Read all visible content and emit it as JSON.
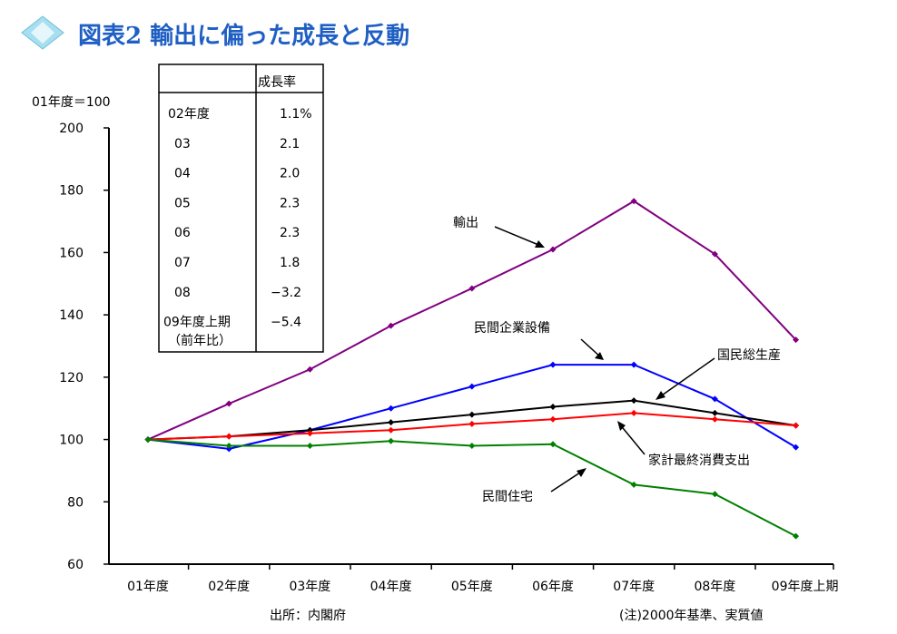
{
  "header": {
    "title": "図表2  輸出に偏った成長と反動",
    "title_color": "#1f5fc4",
    "icon": "diamond-icon"
  },
  "chart_data": {
    "type": "line",
    "ylabel": "01年度＝100",
    "ylim": [
      60,
      200
    ],
    "yticks": [
      60,
      80,
      100,
      120,
      140,
      160,
      180,
      200
    ],
    "categories": [
      "01年度",
      "02年度",
      "03年度",
      "04年度",
      "05年度",
      "06年度",
      "07年度",
      "08年度",
      "09年度上期"
    ],
    "grid": false,
    "series": [
      {
        "name": "輸出",
        "color": "#800080",
        "values": [
          100,
          111.5,
          122.5,
          136.5,
          148.5,
          161,
          176.5,
          159.5,
          132
        ]
      },
      {
        "name": "民間企業設備",
        "color": "#0000ff",
        "values": [
          100,
          97,
          103,
          110,
          117,
          124,
          124,
          113,
          97.5
        ]
      },
      {
        "name": "国民総生産",
        "color": "#000000",
        "values": [
          100,
          101,
          103,
          105.5,
          108,
          110.5,
          112.5,
          108.5,
          104.5
        ]
      },
      {
        "name": "家計最終消費支出",
        "color": "#ff0000",
        "values": [
          100,
          101,
          102,
          103,
          105,
          106.5,
          108.5,
          106.5,
          104.5
        ]
      },
      {
        "name": "民間住宅",
        "color": "#008000",
        "values": [
          100,
          98,
          98,
          99.5,
          98,
          98.5,
          85.5,
          82.5,
          69
        ]
      }
    ]
  },
  "growth_table": {
    "header": "成長率",
    "rows": [
      {
        "label": "02年度",
        "value": "1.1%"
      },
      {
        "label": "03",
        "value": "2.1"
      },
      {
        "label": "04",
        "value": "2.0"
      },
      {
        "label": "05",
        "value": "2.3"
      },
      {
        "label": "06",
        "value": "2.3"
      },
      {
        "label": "07",
        "value": "1.8"
      },
      {
        "label": "08",
        "value": "−3.2"
      },
      {
        "label": "09年度上期",
        "value": "−5.4"
      }
    ],
    "note": "（前年比）"
  },
  "footer": {
    "source": "出所：内閣府",
    "note": "(注)2000年基準、実質値"
  }
}
